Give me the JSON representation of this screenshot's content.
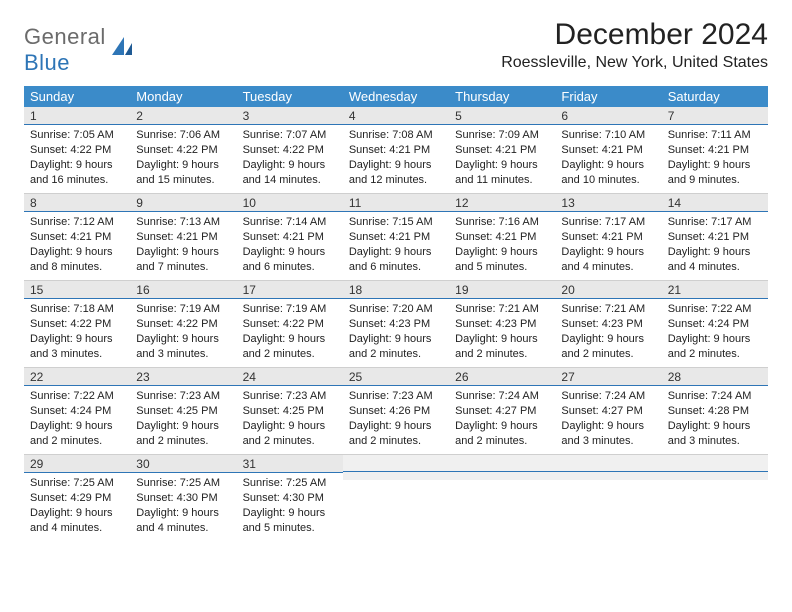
{
  "logo": {
    "general": "General",
    "blue": "Blue"
  },
  "title": "December 2024",
  "location": "Roessleville, New York, United States",
  "colors": {
    "header_bg": "#3b8bc9",
    "header_text": "#ffffff",
    "daynum_bg": "#e8e8e8",
    "daynum_border": "#2e75b6",
    "logo_gray": "#6b6b6b",
    "logo_blue": "#2e75b6",
    "text": "#222222",
    "empty_bg": "#f0f0f0"
  },
  "day_headers": [
    "Sunday",
    "Monday",
    "Tuesday",
    "Wednesday",
    "Thursday",
    "Friday",
    "Saturday"
  ],
  "weeks": [
    [
      {
        "n": "1",
        "sr": "Sunrise: 7:05 AM",
        "ss": "Sunset: 4:22 PM",
        "d1": "Daylight: 9 hours",
        "d2": "and 16 minutes."
      },
      {
        "n": "2",
        "sr": "Sunrise: 7:06 AM",
        "ss": "Sunset: 4:22 PM",
        "d1": "Daylight: 9 hours",
        "d2": "and 15 minutes."
      },
      {
        "n": "3",
        "sr": "Sunrise: 7:07 AM",
        "ss": "Sunset: 4:22 PM",
        "d1": "Daylight: 9 hours",
        "d2": "and 14 minutes."
      },
      {
        "n": "4",
        "sr": "Sunrise: 7:08 AM",
        "ss": "Sunset: 4:21 PM",
        "d1": "Daylight: 9 hours",
        "d2": "and 12 minutes."
      },
      {
        "n": "5",
        "sr": "Sunrise: 7:09 AM",
        "ss": "Sunset: 4:21 PM",
        "d1": "Daylight: 9 hours",
        "d2": "and 11 minutes."
      },
      {
        "n": "6",
        "sr": "Sunrise: 7:10 AM",
        "ss": "Sunset: 4:21 PM",
        "d1": "Daylight: 9 hours",
        "d2": "and 10 minutes."
      },
      {
        "n": "7",
        "sr": "Sunrise: 7:11 AM",
        "ss": "Sunset: 4:21 PM",
        "d1": "Daylight: 9 hours",
        "d2": "and 9 minutes."
      }
    ],
    [
      {
        "n": "8",
        "sr": "Sunrise: 7:12 AM",
        "ss": "Sunset: 4:21 PM",
        "d1": "Daylight: 9 hours",
        "d2": "and 8 minutes."
      },
      {
        "n": "9",
        "sr": "Sunrise: 7:13 AM",
        "ss": "Sunset: 4:21 PM",
        "d1": "Daylight: 9 hours",
        "d2": "and 7 minutes."
      },
      {
        "n": "10",
        "sr": "Sunrise: 7:14 AM",
        "ss": "Sunset: 4:21 PM",
        "d1": "Daylight: 9 hours",
        "d2": "and 6 minutes."
      },
      {
        "n": "11",
        "sr": "Sunrise: 7:15 AM",
        "ss": "Sunset: 4:21 PM",
        "d1": "Daylight: 9 hours",
        "d2": "and 6 minutes."
      },
      {
        "n": "12",
        "sr": "Sunrise: 7:16 AM",
        "ss": "Sunset: 4:21 PM",
        "d1": "Daylight: 9 hours",
        "d2": "and 5 minutes."
      },
      {
        "n": "13",
        "sr": "Sunrise: 7:17 AM",
        "ss": "Sunset: 4:21 PM",
        "d1": "Daylight: 9 hours",
        "d2": "and 4 minutes."
      },
      {
        "n": "14",
        "sr": "Sunrise: 7:17 AM",
        "ss": "Sunset: 4:21 PM",
        "d1": "Daylight: 9 hours",
        "d2": "and 4 minutes."
      }
    ],
    [
      {
        "n": "15",
        "sr": "Sunrise: 7:18 AM",
        "ss": "Sunset: 4:22 PM",
        "d1": "Daylight: 9 hours",
        "d2": "and 3 minutes."
      },
      {
        "n": "16",
        "sr": "Sunrise: 7:19 AM",
        "ss": "Sunset: 4:22 PM",
        "d1": "Daylight: 9 hours",
        "d2": "and 3 minutes."
      },
      {
        "n": "17",
        "sr": "Sunrise: 7:19 AM",
        "ss": "Sunset: 4:22 PM",
        "d1": "Daylight: 9 hours",
        "d2": "and 2 minutes."
      },
      {
        "n": "18",
        "sr": "Sunrise: 7:20 AM",
        "ss": "Sunset: 4:23 PM",
        "d1": "Daylight: 9 hours",
        "d2": "and 2 minutes."
      },
      {
        "n": "19",
        "sr": "Sunrise: 7:21 AM",
        "ss": "Sunset: 4:23 PM",
        "d1": "Daylight: 9 hours",
        "d2": "and 2 minutes."
      },
      {
        "n": "20",
        "sr": "Sunrise: 7:21 AM",
        "ss": "Sunset: 4:23 PM",
        "d1": "Daylight: 9 hours",
        "d2": "and 2 minutes."
      },
      {
        "n": "21",
        "sr": "Sunrise: 7:22 AM",
        "ss": "Sunset: 4:24 PM",
        "d1": "Daylight: 9 hours",
        "d2": "and 2 minutes."
      }
    ],
    [
      {
        "n": "22",
        "sr": "Sunrise: 7:22 AM",
        "ss": "Sunset: 4:24 PM",
        "d1": "Daylight: 9 hours",
        "d2": "and 2 minutes."
      },
      {
        "n": "23",
        "sr": "Sunrise: 7:23 AM",
        "ss": "Sunset: 4:25 PM",
        "d1": "Daylight: 9 hours",
        "d2": "and 2 minutes."
      },
      {
        "n": "24",
        "sr": "Sunrise: 7:23 AM",
        "ss": "Sunset: 4:25 PM",
        "d1": "Daylight: 9 hours",
        "d2": "and 2 minutes."
      },
      {
        "n": "25",
        "sr": "Sunrise: 7:23 AM",
        "ss": "Sunset: 4:26 PM",
        "d1": "Daylight: 9 hours",
        "d2": "and 2 minutes."
      },
      {
        "n": "26",
        "sr": "Sunrise: 7:24 AM",
        "ss": "Sunset: 4:27 PM",
        "d1": "Daylight: 9 hours",
        "d2": "and 2 minutes."
      },
      {
        "n": "27",
        "sr": "Sunrise: 7:24 AM",
        "ss": "Sunset: 4:27 PM",
        "d1": "Daylight: 9 hours",
        "d2": "and 3 minutes."
      },
      {
        "n": "28",
        "sr": "Sunrise: 7:24 AM",
        "ss": "Sunset: 4:28 PM",
        "d1": "Daylight: 9 hours",
        "d2": "and 3 minutes."
      }
    ],
    [
      {
        "n": "29",
        "sr": "Sunrise: 7:25 AM",
        "ss": "Sunset: 4:29 PM",
        "d1": "Daylight: 9 hours",
        "d2": "and 4 minutes."
      },
      {
        "n": "30",
        "sr": "Sunrise: 7:25 AM",
        "ss": "Sunset: 4:30 PM",
        "d1": "Daylight: 9 hours",
        "d2": "and 4 minutes."
      },
      {
        "n": "31",
        "sr": "Sunrise: 7:25 AM",
        "ss": "Sunset: 4:30 PM",
        "d1": "Daylight: 9 hours",
        "d2": "and 5 minutes."
      },
      {
        "empty": true
      },
      {
        "empty": true
      },
      {
        "empty": true
      },
      {
        "empty": true
      }
    ]
  ]
}
